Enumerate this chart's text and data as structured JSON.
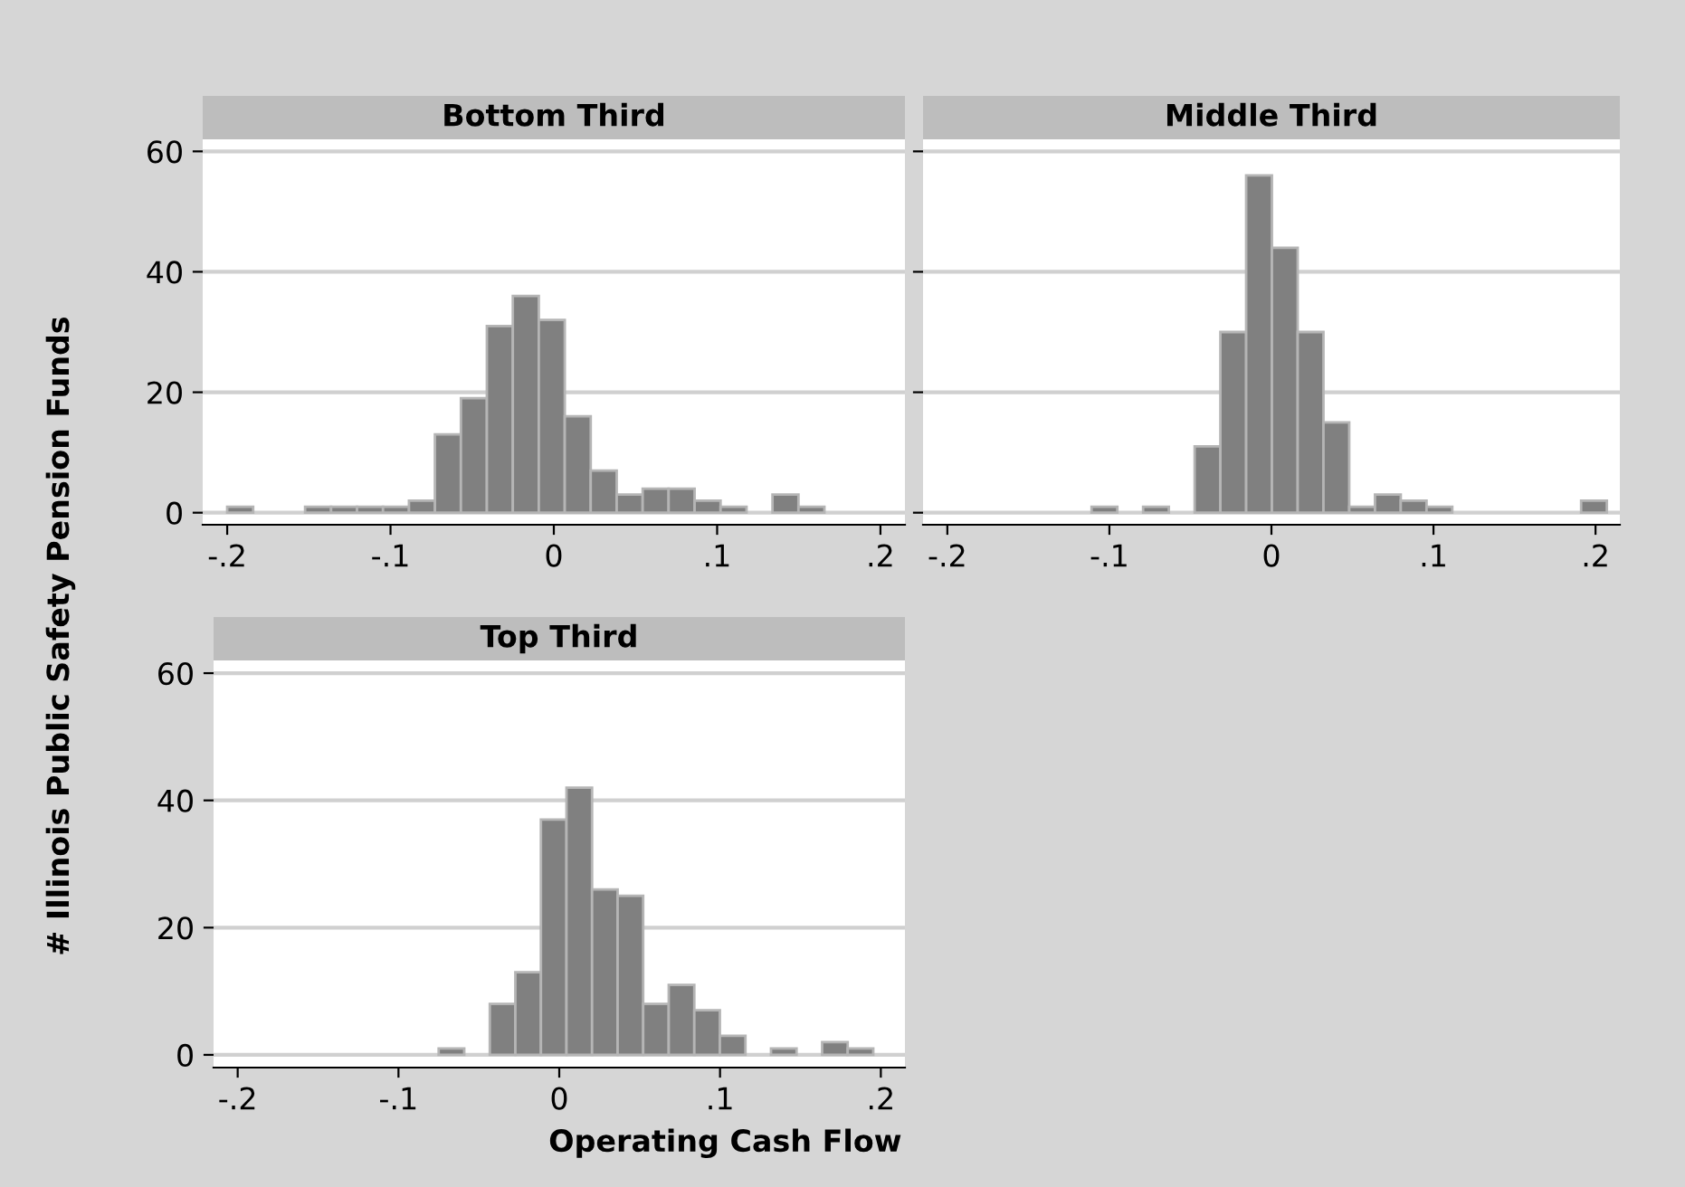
{
  "chart_data": [
    {
      "type": "histogram",
      "title": "Bottom Third",
      "color": "#808080",
      "bins": [
        -0.2,
        -0.1841,
        -0.1682,
        -0.1523,
        -0.1364,
        -0.1205,
        -0.1046,
        -0.0887,
        -0.0728,
        -0.0569,
        -0.041,
        -0.0251,
        -0.0092,
        0.0067,
        0.0226,
        0.0385,
        0.0544,
        0.0703,
        0.0862,
        0.1021,
        0.118,
        0.1339,
        0.1498,
        0.1657
      ],
      "values": [
        1,
        0,
        0,
        1,
        1,
        1,
        1,
        2,
        13,
        19,
        31,
        36,
        32,
        16,
        7,
        3,
        4,
        4,
        2,
        1,
        0,
        3,
        1
      ],
      "xlim": [
        -0.215,
        0.215
      ],
      "ylim": [
        -2,
        62
      ],
      "xticks": [
        {
          "value": -0.2,
          "label": "-.2"
        },
        {
          "value": -0.1,
          "label": "-.1"
        },
        0,
        {
          "value": 0.1,
          "label": ".1"
        },
        {
          "value": 0.2,
          "label": ".2"
        }
      ],
      "yticks": [
        0,
        20,
        40,
        60
      ],
      "grid": "y",
      "legend": false
    },
    {
      "type": "histogram",
      "title": "Middle Third",
      "color": "#808080",
      "bins": [
        -0.111,
        -0.0951,
        -0.0792,
        -0.0633,
        -0.0474,
        -0.0315,
        -0.0156,
        0.0003,
        0.0162,
        0.0321,
        0.048,
        0.0639,
        0.0798,
        0.0957,
        0.1116,
        0.1275,
        0.1434,
        0.1593,
        0.1752,
        0.1911,
        0.207
      ],
      "values": [
        1,
        0,
        1,
        0,
        11,
        30,
        56,
        44,
        30,
        15,
        1,
        3,
        2,
        1,
        0,
        0,
        0,
        0,
        0,
        2
      ],
      "xlim": [
        -0.215,
        0.215
      ],
      "ylim": [
        -2,
        62
      ],
      "xticks": [
        {
          "value": -0.2,
          "label": "-.2"
        },
        {
          "value": -0.1,
          "label": "-.1"
        },
        0,
        {
          "value": 0.1,
          "label": ".1"
        },
        {
          "value": 0.2,
          "label": ".2"
        }
      ],
      "yticks": [
        0,
        20,
        40,
        60
      ],
      "grid": "y",
      "legend": false,
      "tick_labels": "x"
    },
    {
      "type": "histogram",
      "title": "Top Third",
      "color": "#808080",
      "xlabel": "Operating Cash Flow",
      "ylabel": "# Illinois Public Safety Pension Funds",
      "bins": [
        -0.075,
        -0.0591,
        -0.0432,
        -0.0273,
        -0.0114,
        0.0045,
        0.0204,
        0.0363,
        0.0522,
        0.0681,
        0.084,
        0.0999,
        0.1158,
        0.1317,
        0.1476,
        0.1635,
        0.1794,
        0.1953
      ],
      "values": [
        1,
        0,
        8,
        13,
        37,
        42,
        26,
        25,
        8,
        11,
        7,
        3,
        0,
        1,
        0,
        2,
        1
      ],
      "xlim": [
        -0.215,
        0.215
      ],
      "ylim": [
        -2,
        62
      ],
      "xticks": [
        {
          "value": -0.2,
          "label": "-.2"
        },
        {
          "value": -0.1,
          "label": "-.1"
        },
        0,
        {
          "value": 0.1,
          "label": ".1"
        },
        {
          "value": 0.2,
          "label": ".2"
        }
      ],
      "yticks": [
        0,
        20,
        40,
        60
      ],
      "grid": "y",
      "legend": false
    }
  ]
}
